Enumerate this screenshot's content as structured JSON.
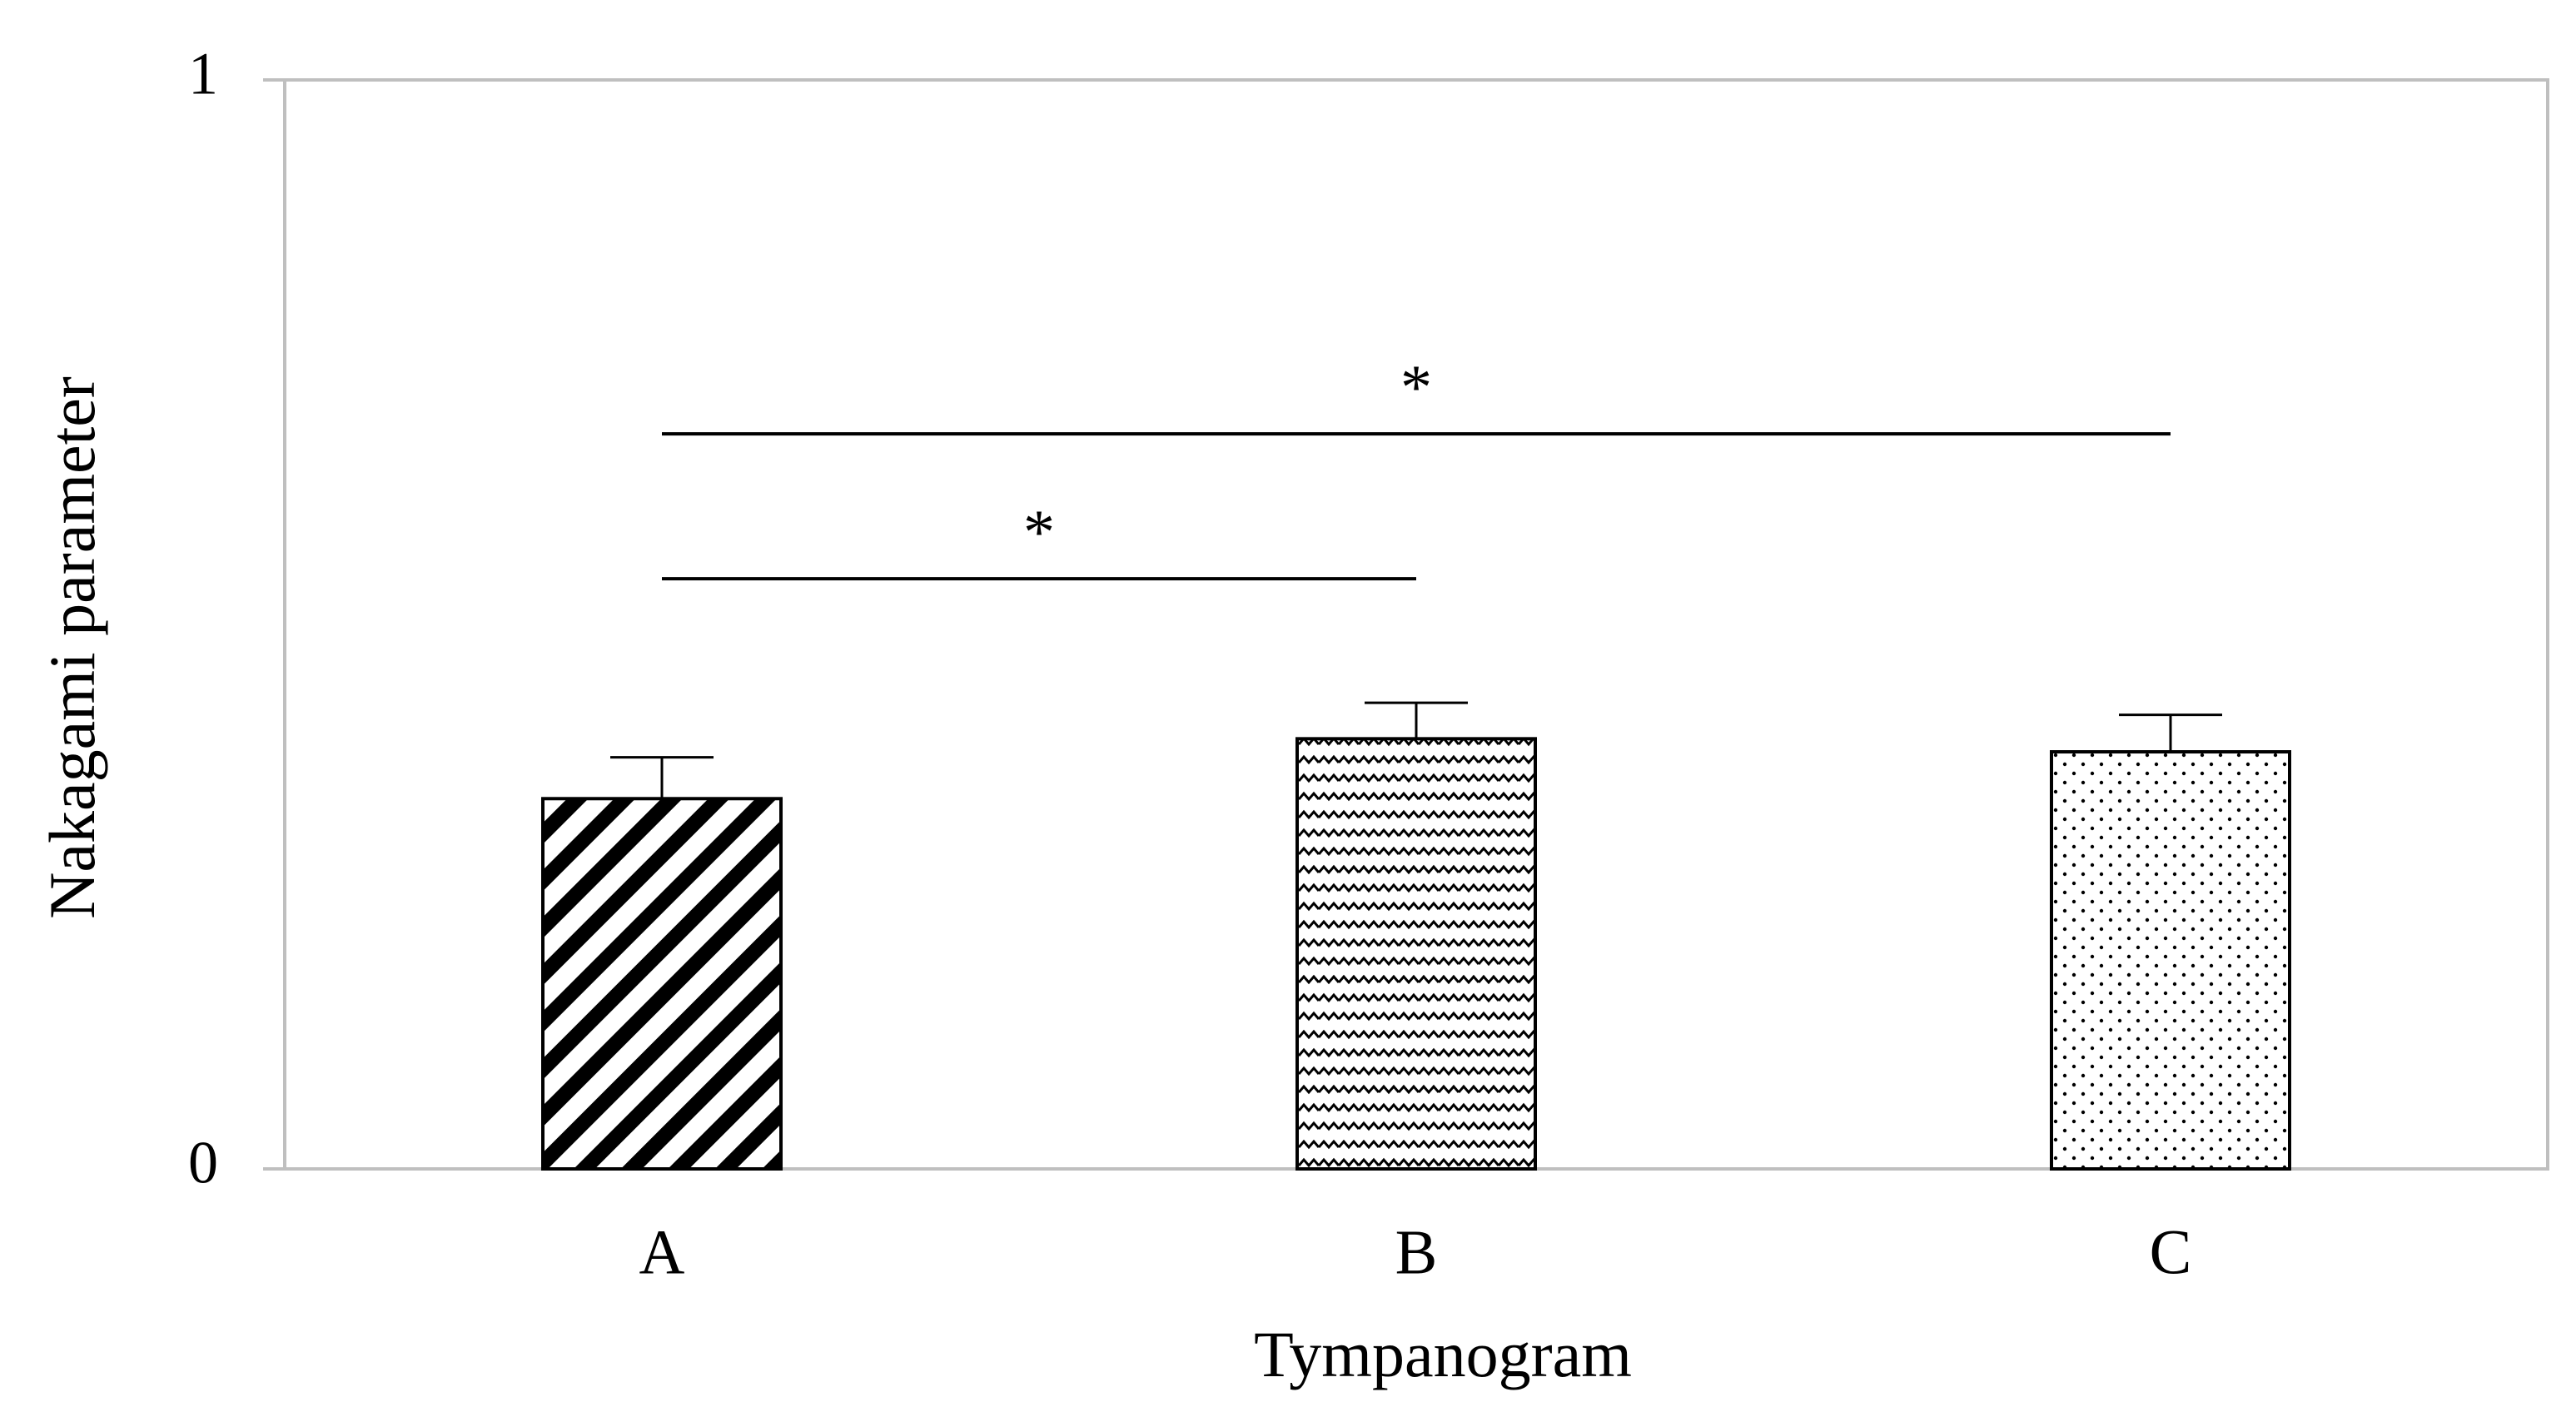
{
  "chart_data": {
    "type": "bar",
    "categories": [
      "A",
      "B",
      "C"
    ],
    "values": [
      0.34,
      0.395,
      0.383
    ],
    "errors": [
      0.038,
      0.033,
      0.034
    ],
    "xlabel": "Tympanogram",
    "ylabel": "Nakagami parameter",
    "ylim": [
      0,
      1
    ],
    "yticks": [
      "0",
      "1"
    ],
    "grid": false,
    "legend": "none",
    "bar_patterns": [
      "diagonal-stripes",
      "zigzag",
      "dots"
    ],
    "significance": [
      {
        "from": "A",
        "to": "B",
        "y": 0.542,
        "label": "*"
      },
      {
        "from": "A",
        "to": "C",
        "y": 0.675,
        "label": "*"
      }
    ],
    "colors": {
      "bar_outline": "#000000",
      "frame": "#bfbfbf",
      "text": "#000000",
      "background": "#ffffff"
    }
  }
}
